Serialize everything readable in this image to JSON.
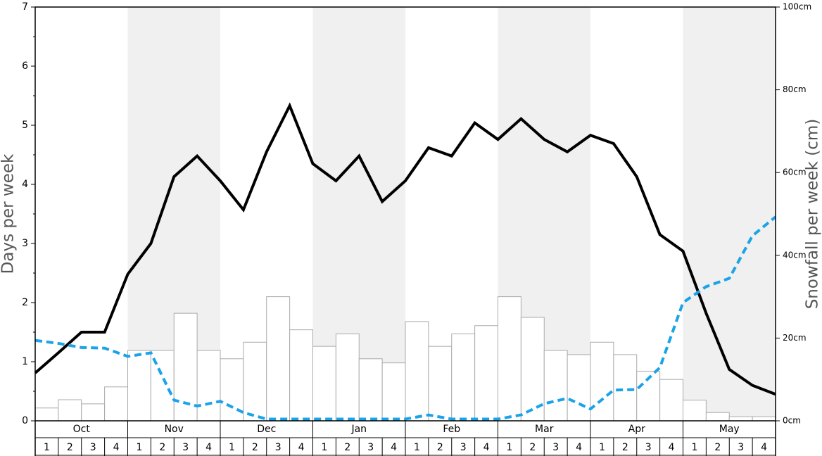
{
  "chart_data": {
    "type": "bar-line",
    "ylabel": "Days per week",
    "y2label": "Snowfall per week (cm)",
    "months": [
      "Oct",
      "Nov",
      "Dec",
      "Jan",
      "Feb",
      "Mar",
      "Apr",
      "May"
    ],
    "categories": [
      "1",
      "2",
      "3",
      "4",
      "1",
      "2",
      "3",
      "4",
      "1",
      "2",
      "3",
      "4",
      "1",
      "2",
      "3",
      "4",
      "1",
      "2",
      "3",
      "4",
      "1",
      "2",
      "3",
      "4",
      "1",
      "2",
      "3",
      "4",
      "1",
      "2",
      "3",
      "4"
    ],
    "ylim": [
      0,
      7
    ],
    "yticks": [
      0,
      1,
      2,
      3,
      4,
      5,
      6,
      7
    ],
    "y2lim": [
      0,
      100
    ],
    "y2ticks": [
      {
        "value": 0,
        "label": "0cm"
      },
      {
        "value": 20,
        "label": "20cm"
      },
      {
        "value": 40,
        "label": "40cm"
      },
      {
        "value": 60,
        "label": "60cm"
      },
      {
        "value": 80,
        "label": "80cm"
      },
      {
        "value": 100,
        "label": "100cm"
      }
    ],
    "series": [
      {
        "type": "bar",
        "axis": "y2",
        "color": "#ffffff",
        "values": [
          3.1,
          5.1,
          4.1,
          8.2,
          17,
          17,
          26,
          17,
          15,
          19,
          30,
          22,
          18,
          21,
          15,
          14,
          24,
          18,
          21,
          23,
          30,
          25,
          17,
          16,
          19,
          16,
          12,
          10,
          5,
          2,
          1,
          1
        ]
      },
      {
        "type": "line",
        "color": "#000000",
        "dashed": false,
        "x": [
          0,
          1,
          2,
          3,
          4,
          5,
          6,
          7,
          8,
          9,
          10,
          11,
          12,
          13,
          14,
          15,
          16,
          17,
          18,
          19,
          20,
          21,
          22,
          23,
          24,
          25,
          26,
          27,
          28,
          29,
          30,
          31,
          32
        ],
        "values": [
          0.81,
          1.15,
          1.5,
          1.5,
          2.48,
          3.0,
          4.13,
          4.48,
          4.06,
          3.57,
          4.55,
          5.33,
          4.35,
          4.06,
          4.48,
          3.71,
          4.06,
          4.62,
          4.48,
          5.04,
          4.76,
          5.11,
          4.76,
          4.55,
          4.83,
          4.69,
          4.13,
          3.15,
          2.87,
          1.82,
          0.87,
          0.6,
          0.45
        ]
      },
      {
        "type": "line",
        "color": "#1aa3e8",
        "dashed": true,
        "x": [
          0,
          1,
          2,
          3,
          4,
          5,
          6,
          7,
          8,
          9,
          10,
          11,
          12,
          13,
          14,
          15,
          16,
          17,
          18,
          19,
          20,
          21,
          22,
          23,
          24,
          25,
          26,
          27,
          28,
          29,
          30,
          31,
          32
        ],
        "values": [
          1.36,
          1.31,
          1.24,
          1.23,
          1.09,
          1.15,
          0.35,
          0.25,
          0.33,
          0.14,
          0.03,
          0.03,
          0.03,
          0.03,
          0.03,
          0.03,
          0.03,
          0.1,
          0.03,
          0.03,
          0.03,
          0.1,
          0.29,
          0.38,
          0.2,
          0.52,
          0.53,
          0.9,
          2.0,
          2.27,
          2.41,
          3.13,
          3.45
        ]
      }
    ]
  }
}
